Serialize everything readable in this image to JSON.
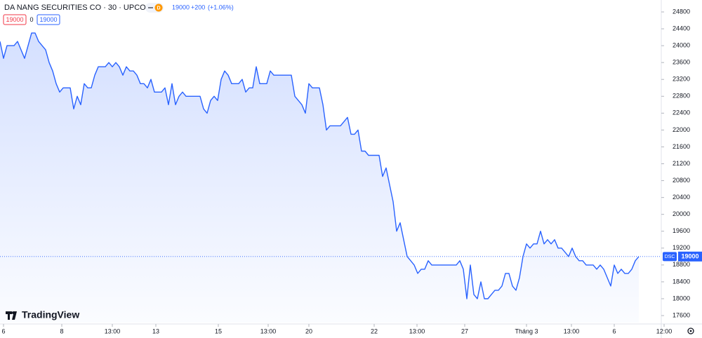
{
  "chart_data": {
    "type": "line",
    "title": "DA NANG SECURITIES CO · 30 · UPCOM",
    "badge": "D",
    "change": "+200",
    "change_pct": "(+1.06%)",
    "bid": 19000,
    "spread": 0,
    "ask": 19000,
    "symbol": "DSC",
    "last_price": 19000,
    "brand": "TradingView",
    "color": "#2962ff",
    "values": [
      24100,
      23700,
      24000,
      24000,
      24000,
      24100,
      23900,
      23700,
      24000,
      24300,
      24300,
      24100,
      24000,
      23900,
      23600,
      23400,
      23100,
      22900,
      23000,
      23000,
      23000,
      22500,
      22800,
      22600,
      23100,
      23000,
      23000,
      23300,
      23500,
      23500,
      23500,
      23600,
      23500,
      23600,
      23500,
      23300,
      23500,
      23400,
      23400,
      23300,
      23100,
      23100,
      23000,
      23200,
      22900,
      22900,
      22900,
      23000,
      22600,
      23100,
      22600,
      22800,
      22900,
      22800,
      22800,
      22800,
      22800,
      22800,
      22500,
      22400,
      22700,
      22800,
      22700,
      23200,
      23400,
      23300,
      23100,
      23100,
      23100,
      23200,
      22900,
      23000,
      23000,
      23500,
      23100,
      23100,
      23100,
      23400,
      23300,
      23300,
      23300,
      23300,
      23300,
      23300,
      22800,
      22700,
      22600,
      22400,
      23100,
      23000,
      23000,
      23000,
      22600,
      22000,
      22100,
      22100,
      22100,
      22100,
      22200,
      22300,
      21900,
      21900,
      22000,
      21500,
      21500,
      21400,
      21400,
      21400,
      21400,
      20900,
      21100,
      20700,
      20300,
      19600,
      19800,
      19400,
      19000,
      18900,
      18800,
      18600,
      18700,
      18700,
      18900,
      18800,
      18800,
      18800,
      18800,
      18800,
      18800,
      18800,
      18800,
      18900,
      18700,
      18000,
      18800,
      18100,
      18000,
      18400,
      18000,
      18000,
      18100,
      18200,
      18200,
      18300,
      18600,
      18600,
      18300,
      18200,
      18500,
      19000,
      19300,
      19200,
      19300,
      19300,
      19600,
      19300,
      19400,
      19300,
      19400,
      19200,
      19200,
      19100,
      19000,
      19200,
      19000,
      18900,
      18900,
      18800,
      18800,
      18800,
      18700,
      18800,
      18700,
      18500,
      18300,
      18800,
      18600,
      18700,
      18600,
      18600,
      18700,
      18900,
      19000
    ],
    "xlim": [
      0,
      188
    ],
    "xticks": [
      {
        "value": 1,
        "label": "6"
      },
      {
        "value": 17.6,
        "label": "8"
      },
      {
        "value": 32,
        "label": "13:00"
      },
      {
        "value": 44.4,
        "label": "13"
      },
      {
        "value": 62.2,
        "label": "15"
      },
      {
        "value": 76.4,
        "label": "13:00"
      },
      {
        "value": 88,
        "label": "20"
      },
      {
        "value": 106.6,
        "label": "22"
      },
      {
        "value": 118.8,
        "label": "13:00"
      },
      {
        "value": 132.4,
        "label": "27"
      },
      {
        "value": 150,
        "label": "Tháng 3"
      },
      {
        "value": 162.8,
        "label": "13:00"
      },
      {
        "value": 175,
        "label": "6"
      },
      {
        "value": 189.2,
        "label": "12:00"
      }
    ],
    "ylim": [
      17434,
      25083
    ],
    "yticks": [
      17600,
      18000,
      18400,
      18800,
      19200,
      19600,
      20000,
      20400,
      20800,
      21200,
      21600,
      22000,
      22400,
      22800,
      23200,
      23600,
      24000,
      24400,
      24800
    ]
  }
}
